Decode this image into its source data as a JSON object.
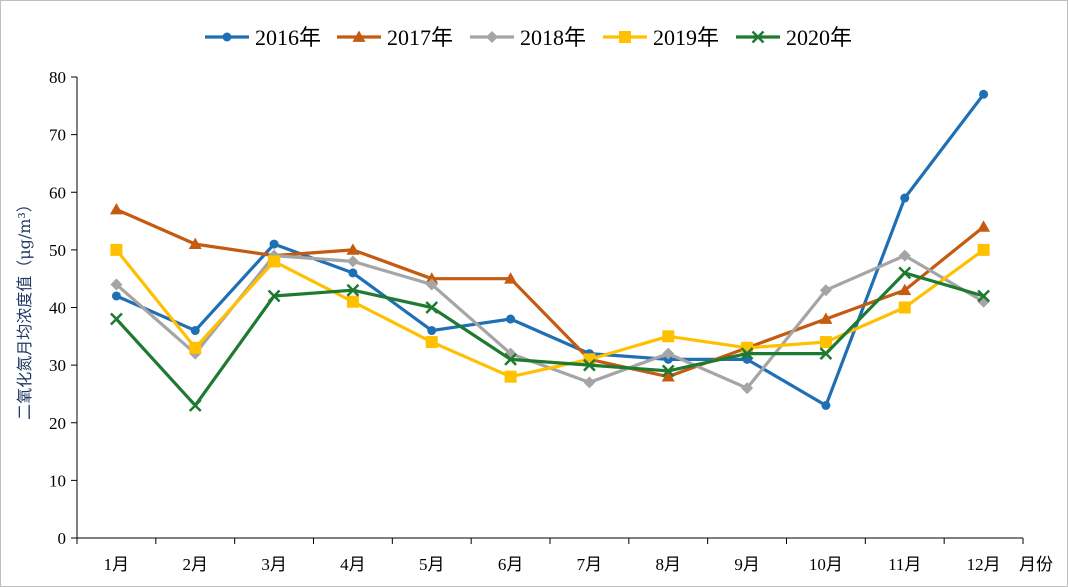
{
  "chart_data": {
    "type": "line",
    "categories": [
      "1月",
      "2月",
      "3月",
      "4月",
      "5月",
      "6月",
      "7月",
      "8月",
      "9月",
      "10月",
      "11月",
      "12月"
    ],
    "xlabel": "月份",
    "ylabel": "二氧化氮月均浓度值（μg/m³）",
    "ylim": [
      0,
      80
    ],
    "yticks": [
      0,
      10,
      20,
      30,
      40,
      50,
      60,
      70,
      80
    ],
    "grid": false,
    "legend_position": "top",
    "series": [
      {
        "name": "2016年",
        "color": "#1f6fb4",
        "marker": "circle",
        "values": [
          42,
          36,
          51,
          46,
          36,
          38,
          32,
          31,
          31,
          23,
          59,
          77
        ]
      },
      {
        "name": "2017年",
        "color": "#c55a11",
        "marker": "triangle",
        "values": [
          57,
          51,
          49,
          50,
          45,
          45,
          31,
          28,
          33,
          38,
          43,
          54
        ]
      },
      {
        "name": "2018年",
        "color": "#a5a5a5",
        "marker": "diamond",
        "values": [
          44,
          32,
          49,
          48,
          44,
          32,
          27,
          32,
          26,
          43,
          49,
          41
        ]
      },
      {
        "name": "2019年",
        "color": "#ffc000",
        "marker": "square",
        "values": [
          50,
          33,
          48,
          41,
          34,
          28,
          31,
          35,
          33,
          34,
          40,
          50
        ]
      },
      {
        "name": "2020年",
        "color": "#1e7a30",
        "marker": "x",
        "values": [
          38,
          23,
          42,
          43,
          40,
          31,
          30,
          29,
          32,
          32,
          46,
          42
        ]
      }
    ]
  }
}
